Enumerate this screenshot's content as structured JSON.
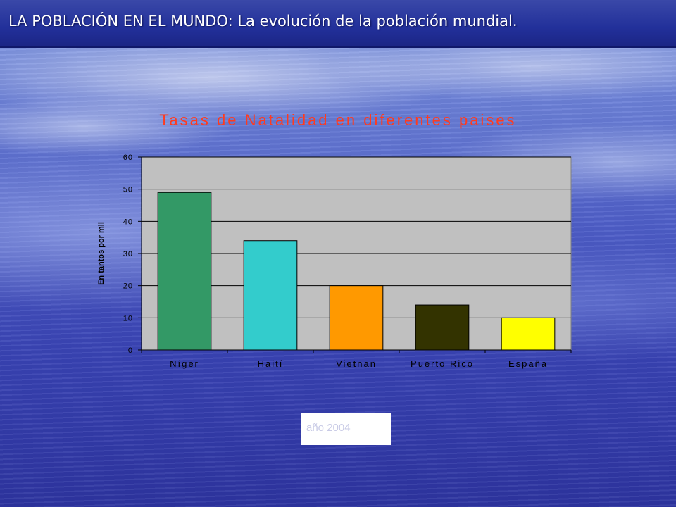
{
  "slide": {
    "title": "LA POBLACIÓN EN EL MUNDO: La evolución de la población mundial.",
    "note": "año 2004"
  },
  "chart_data": {
    "type": "bar",
    "title": "Tasas de Natalidad en diferentes paises",
    "xlabel": "",
    "ylabel": "En tantos por mil",
    "categories": [
      "Níger",
      "Haití",
      "Vietnan",
      "Puerto Rico",
      "España"
    ],
    "values": [
      49,
      34,
      20,
      14,
      10
    ],
    "bar_colors": [
      "#339966",
      "#33cccc",
      "#ff9900",
      "#333300",
      "#ffff00"
    ],
    "ylim": [
      0,
      60
    ],
    "yticks": [
      "0",
      "10",
      "20",
      "30",
      "40",
      "50",
      "60"
    ],
    "grid": true,
    "plot_background": "#c0c0c0",
    "title_color": "#ff3b1f"
  }
}
